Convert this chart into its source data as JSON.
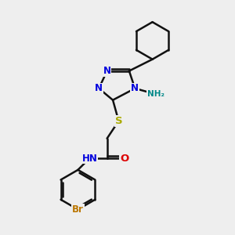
{
  "bg_color": "#eeeeee",
  "bond_color": "#111111",
  "bond_lw": 1.8,
  "atom_colors": {
    "N": "#0000dd",
    "S": "#aaaa00",
    "O": "#dd0000",
    "Br": "#bb7700",
    "NH2_H": "#008888"
  },
  "fontsize": 8.5,
  "fig_w": 3.0,
  "fig_h": 3.0,
  "dpi": 100
}
